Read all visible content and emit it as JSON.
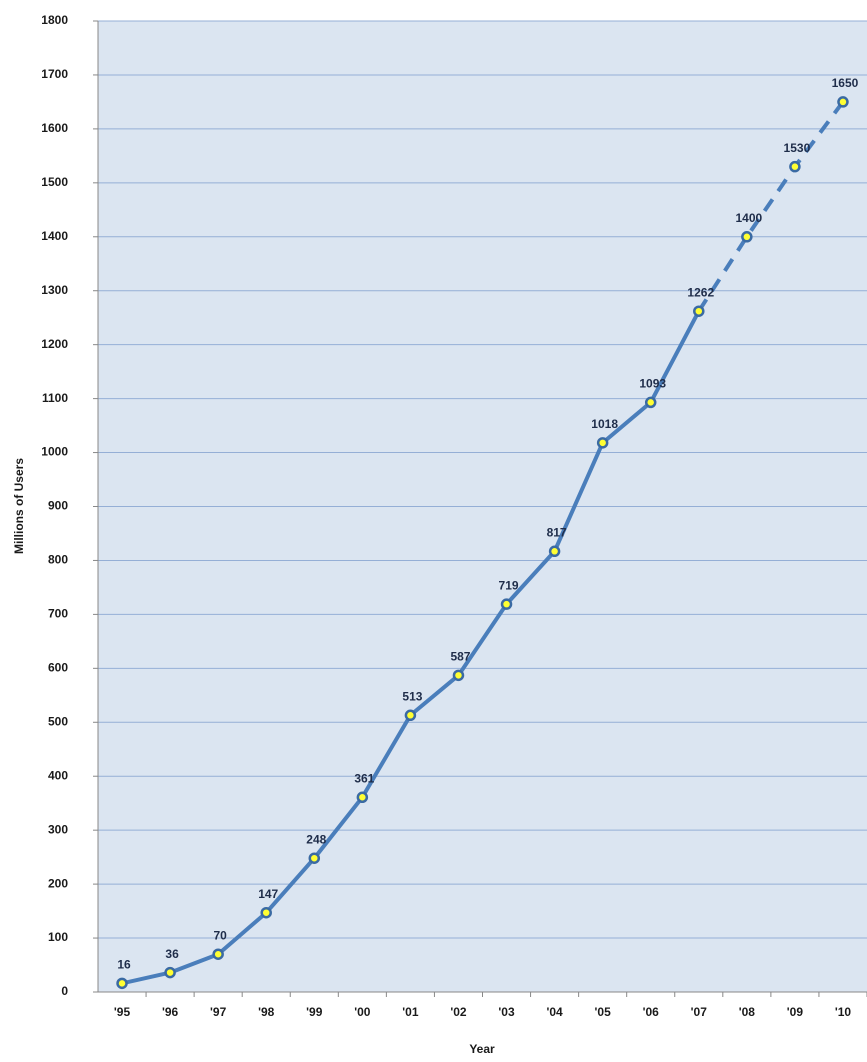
{
  "chart_data": {
    "type": "line",
    "x_label": "Year",
    "y_label": "Millions of Users",
    "categories": [
      "'95",
      "'96",
      "'97",
      "'98",
      "'99",
      "'00",
      "'01",
      "'02",
      "'03",
      "'04",
      "'05",
      "'06",
      "'07",
      "'08",
      "'09",
      "'10"
    ],
    "values": [
      16,
      36,
      70,
      147,
      248,
      361,
      513,
      587,
      719,
      817,
      1018,
      1093,
      1262,
      1400,
      1530,
      1650
    ],
    "dashed_from": 12,
    "color": "#4a7ebb",
    "marker_color": "#ffff33",
    "background": "#dbe5f1",
    "grid_color": "#95afd6",
    "ylim": [
      0,
      1800
    ],
    "yticks": [
      0,
      100,
      200,
      300,
      400,
      500,
      600,
      700,
      800,
      900,
      1000,
      1100,
      1200,
      1300,
      1400,
      1500,
      1600,
      1700,
      1800
    ],
    "grid": true
  }
}
